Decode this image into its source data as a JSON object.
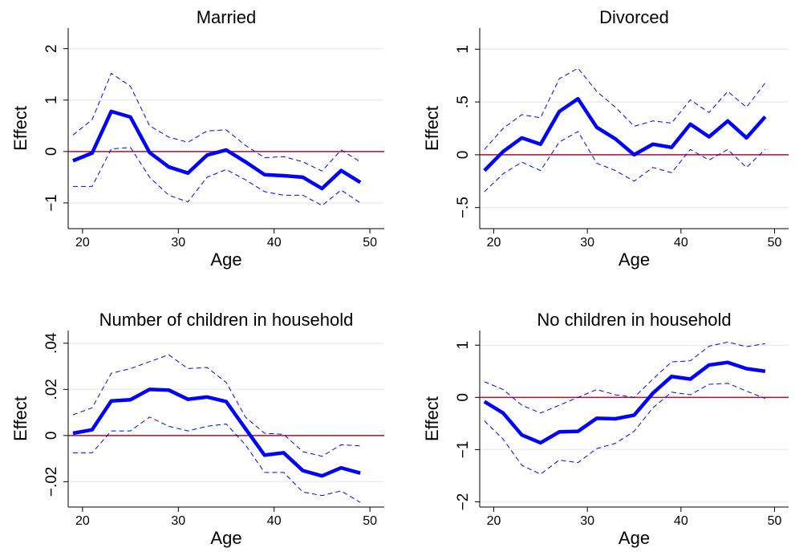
{
  "chart_data": [
    {
      "type": "line",
      "title": "Married",
      "x_label": "Age",
      "y_label": "Effect",
      "x": [
        19,
        21,
        23,
        25,
        27,
        29,
        31,
        33,
        35,
        37,
        39,
        41,
        43,
        45,
        47,
        49
      ],
      "series": [
        {
          "color": "#0000ff",
          "style": "solid",
          "values": [
            -0.18,
            -0.03,
            0.78,
            0.67,
            -0.02,
            -0.3,
            -0.42,
            -0.07,
            0.03,
            -0.2,
            -0.45,
            -0.47,
            -0.5,
            -0.72,
            -0.37,
            -0.6
          ]
        },
        {
          "color": "#0000ff",
          "style": "dashed",
          "values": [
            0.32,
            0.62,
            1.52,
            1.27,
            0.5,
            0.28,
            0.18,
            0.4,
            0.42,
            0.12,
            -0.12,
            -0.1,
            -0.2,
            -0.38,
            0.03,
            -0.2
          ]
        },
        {
          "color": "#0000ff",
          "style": "dashed",
          "values": [
            -0.68,
            -0.68,
            0.05,
            0.08,
            -0.5,
            -0.85,
            -0.98,
            -0.5,
            -0.35,
            -0.55,
            -0.78,
            -0.85,
            -0.85,
            -1.05,
            -0.75,
            -1.0
          ]
        }
      ],
      "xlim": [
        18.5,
        51.5
      ],
      "xticks": [
        20,
        30,
        40,
        50
      ],
      "ylim": [
        -1.5,
        2.4
      ],
      "yticks": [
        {
          "value": -1,
          "label": "−1"
        },
        0,
        1,
        2
      ],
      "grid": true,
      "reference_line": {
        "value": 0,
        "color": "#b01030"
      }
    },
    {
      "type": "line",
      "title": "Divorced",
      "x_label": "Age",
      "y_label": "Effect",
      "x": [
        19,
        21,
        23,
        25,
        27,
        29,
        31,
        33,
        35,
        37,
        39,
        41,
        43,
        45,
        47,
        49
      ],
      "series": [
        {
          "color": "#0000ff",
          "style": "solid",
          "values": [
            -0.15,
            0.03,
            0.16,
            0.1,
            0.41,
            0.53,
            0.26,
            0.15,
            0.0,
            0.1,
            0.07,
            0.29,
            0.17,
            0.32,
            0.16,
            0.36
          ]
        },
        {
          "color": "#0000ff",
          "style": "dashed",
          "values": [
            0.05,
            0.25,
            0.38,
            0.35,
            0.72,
            0.82,
            0.6,
            0.45,
            0.27,
            0.32,
            0.3,
            0.52,
            0.4,
            0.6,
            0.45,
            0.68
          ]
        },
        {
          "color": "#0000ff",
          "style": "dashed",
          "values": [
            -0.35,
            -0.18,
            -0.07,
            -0.15,
            0.12,
            0.22,
            -0.08,
            -0.15,
            -0.25,
            -0.12,
            -0.17,
            0.05,
            -0.05,
            0.05,
            -0.12,
            0.05
          ]
        }
      ],
      "xlim": [
        18.5,
        51.5
      ],
      "xticks": [
        20,
        30,
        40,
        50
      ],
      "ylim": [
        -0.7,
        1.2
      ],
      "yticks": [
        {
          "value": -0.5,
          "label": "−.5"
        },
        0,
        {
          "value": 0.5,
          "label": ".5"
        },
        1
      ],
      "grid": true,
      "reference_line": {
        "value": 0,
        "color": "#b01030"
      }
    },
    {
      "type": "line",
      "title": "Number of children in household",
      "x_label": "Age",
      "y_label": "Effect",
      "x": [
        19,
        21,
        23,
        25,
        27,
        29,
        31,
        33,
        35,
        37,
        39,
        41,
        43,
        45,
        47,
        49
      ],
      "series": [
        {
          "color": "#0000ff",
          "style": "solid",
          "values": [
            0.001,
            0.0025,
            0.015,
            0.0155,
            0.02,
            0.0197,
            0.0157,
            0.0167,
            0.0147,
            0.003,
            -0.0085,
            -0.0075,
            -0.0152,
            -0.0175,
            -0.014,
            -0.0163
          ]
        },
        {
          "color": "#0000ff",
          "style": "dashed",
          "values": [
            0.009,
            0.012,
            0.027,
            0.029,
            0.032,
            0.035,
            0.029,
            0.0295,
            0.023,
            0.008,
            0.001,
            0.0005,
            -0.007,
            -0.009,
            -0.004,
            -0.0045
          ]
        },
        {
          "color": "#0000ff",
          "style": "dashed",
          "values": [
            -0.0075,
            -0.0075,
            0.002,
            0.002,
            0.008,
            0.004,
            0.002,
            0.004,
            0.005,
            -0.004,
            -0.016,
            -0.016,
            -0.0245,
            -0.026,
            -0.024,
            -0.029
          ]
        }
      ],
      "xlim": [
        18.5,
        51.5
      ],
      "xticks": [
        20,
        30,
        40,
        50
      ],
      "ylim": [
        -0.031,
        0.0455
      ],
      "yticks": [
        {
          "value": -0.02,
          "label": "−.02"
        },
        0,
        {
          "value": 0.02,
          "label": ".02"
        },
        {
          "value": 0.04,
          "label": ".04"
        }
      ],
      "grid": true,
      "reference_line": {
        "value": 0,
        "color": "#b01030"
      }
    },
    {
      "type": "line",
      "title": "No children in household",
      "x_label": "Age",
      "y_label": "Effect",
      "x": [
        19,
        21,
        23,
        25,
        27,
        29,
        31,
        33,
        35,
        37,
        39,
        41,
        43,
        45,
        47,
        49
      ],
      "series": [
        {
          "color": "#0000ff",
          "style": "solid",
          "values": [
            -0.08,
            -0.3,
            -0.72,
            -0.87,
            -0.66,
            -0.65,
            -0.4,
            -0.41,
            -0.34,
            0.08,
            0.4,
            0.35,
            0.62,
            0.67,
            0.55,
            0.5
          ]
        },
        {
          "color": "#0000ff",
          "style": "dashed",
          "values": [
            0.3,
            0.15,
            -0.15,
            -0.3,
            -0.15,
            0.0,
            0.15,
            0.05,
            0.0,
            0.35,
            0.68,
            0.7,
            0.98,
            1.06,
            0.97,
            1.03
          ]
        },
        {
          "color": "#0000ff",
          "style": "dashed",
          "values": [
            -0.45,
            -0.8,
            -1.3,
            -1.47,
            -1.2,
            -1.25,
            -0.98,
            -0.88,
            -0.65,
            -0.2,
            0.1,
            0.05,
            0.25,
            0.27,
            0.12,
            -0.02
          ]
        }
      ],
      "xlim": [
        18.5,
        51.5
      ],
      "xticks": [
        20,
        30,
        40,
        50
      ],
      "ylim": [
        -2.1,
        1.28
      ],
      "yticks": [
        {
          "value": -2,
          "label": "−2"
        },
        {
          "value": -1,
          "label": "−1"
        },
        0,
        1
      ],
      "grid": true,
      "reference_line": {
        "value": 0,
        "color": "#b01030"
      }
    }
  ]
}
